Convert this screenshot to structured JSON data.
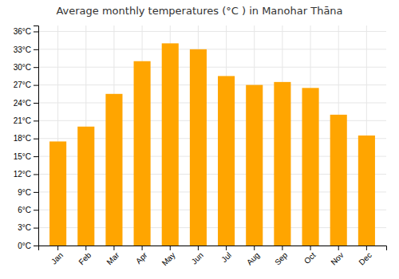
{
  "chart_data": {
    "type": "bar",
    "title": "Average monthly temperatures (°C ) in Manohar Thāna",
    "categories": [
      "Jan",
      "Feb",
      "Mar",
      "Apr",
      "May",
      "Jun",
      "Jul",
      "Aug",
      "Sep",
      "Oct",
      "Nov",
      "Dec"
    ],
    "values": [
      17.5,
      20.0,
      25.5,
      31.0,
      34.0,
      33.0,
      28.5,
      27.0,
      27.5,
      26.5,
      22.0,
      18.5
    ],
    "color": "#FFA500",
    "ylim": [
      0,
      37
    ],
    "yticks": [
      {
        "value": 0,
        "label": "0°C"
      },
      {
        "value": 3,
        "label": "3°C"
      },
      {
        "value": 6,
        "label": "6°C"
      },
      {
        "value": 9,
        "label": "9°C"
      },
      {
        "value": 12,
        "label": "12°C"
      },
      {
        "value": 15,
        "label": "15°C"
      },
      {
        "value": 18,
        "label": "18°C"
      },
      {
        "value": 21,
        "label": "21°C"
      },
      {
        "value": 24,
        "label": "24°C"
      },
      {
        "value": 27,
        "label": "27°C"
      },
      {
        "value": 30,
        "label": "30°C"
      },
      {
        "value": 33,
        "label": "33°C"
      },
      {
        "value": 36,
        "label": "36°C"
      }
    ],
    "grid": true
  }
}
